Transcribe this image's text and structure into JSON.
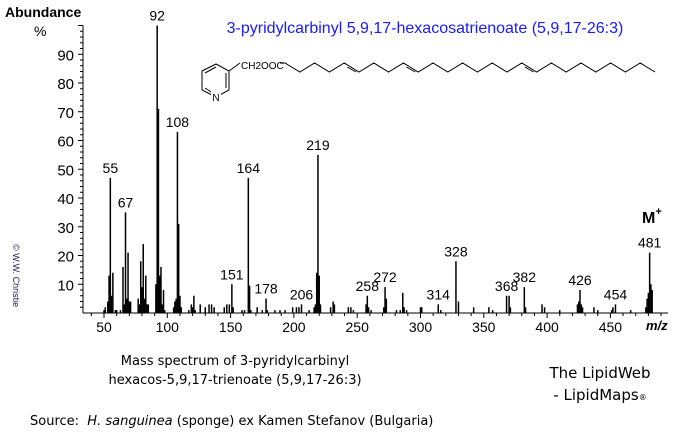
{
  "chart_data": {
    "type": "bar",
    "title": "3-pyridylcarbinyl 5,9,17-hexacosatrienoate  (5,9,17-26:3)",
    "ylabel": "Abundance",
    "ylabel_unit": "%",
    "xlabel": "m/z",
    "xlim": [
      37,
      490
    ],
    "ylim": [
      0,
      100
    ],
    "xticks": [
      50,
      100,
      150,
      200,
      250,
      300,
      350,
      400,
      450
    ],
    "yticks": [
      10,
      20,
      30,
      40,
      50,
      60,
      70,
      80,
      90
    ],
    "grid": false,
    "title_color": "#1a1aff",
    "molecular_ion_label": "M",
    "molecular_ion_sup": "+",
    "peaks": [
      {
        "mz": 50,
        "rel": 1
      },
      {
        "mz": 51,
        "rel": 2
      },
      {
        "mz": 53,
        "rel": 4
      },
      {
        "mz": 54,
        "rel": 13
      },
      {
        "mz": 55,
        "rel": 47,
        "label": "55"
      },
      {
        "mz": 56,
        "rel": 6
      },
      {
        "mz": 57,
        "rel": 14
      },
      {
        "mz": 59,
        "rel": 1
      },
      {
        "mz": 60,
        "rel": 1
      },
      {
        "mz": 63,
        "rel": 1
      },
      {
        "mz": 65,
        "rel": 16
      },
      {
        "mz": 66,
        "rel": 3
      },
      {
        "mz": 67,
        "rel": 35,
        "label": "67"
      },
      {
        "mz": 68,
        "rel": 5
      },
      {
        "mz": 69,
        "rel": 21
      },
      {
        "mz": 70,
        "rel": 4
      },
      {
        "mz": 71,
        "rel": 4
      },
      {
        "mz": 77,
        "rel": 5
      },
      {
        "mz": 78,
        "rel": 3
      },
      {
        "mz": 79,
        "rel": 18
      },
      {
        "mz": 80,
        "rel": 9
      },
      {
        "mz": 81,
        "rel": 24
      },
      {
        "mz": 82,
        "rel": 5
      },
      {
        "mz": 83,
        "rel": 13
      },
      {
        "mz": 84,
        "rel": 3
      },
      {
        "mz": 85,
        "rel": 3
      },
      {
        "mz": 91,
        "rel": 10
      },
      {
        "mz": 92,
        "rel": 100,
        "label": "92"
      },
      {
        "mz": 93,
        "rel": 71
      },
      {
        "mz": 94,
        "rel": 13
      },
      {
        "mz": 95,
        "rel": 16
      },
      {
        "mz": 96,
        "rel": 3
      },
      {
        "mz": 97,
        "rel": 8
      },
      {
        "mz": 98,
        "rel": 1
      },
      {
        "mz": 105,
        "rel": 2
      },
      {
        "mz": 106,
        "rel": 4
      },
      {
        "mz": 107,
        "rel": 5
      },
      {
        "mz": 108,
        "rel": 63,
        "label": "108"
      },
      {
        "mz": 109,
        "rel": 31
      },
      {
        "mz": 110,
        "rel": 6
      },
      {
        "mz": 111,
        "rel": 2
      },
      {
        "mz": 117,
        "rel": 1
      },
      {
        "mz": 119,
        "rel": 3
      },
      {
        "mz": 120,
        "rel": 2
      },
      {
        "mz": 121,
        "rel": 6
      },
      {
        "mz": 122,
        "rel": 1
      },
      {
        "mz": 126,
        "rel": 3
      },
      {
        "mz": 130,
        "rel": 2
      },
      {
        "mz": 133,
        "rel": 3
      },
      {
        "mz": 135,
        "rel": 3
      },
      {
        "mz": 137,
        "rel": 2
      },
      {
        "mz": 145,
        "rel": 2
      },
      {
        "mz": 147,
        "rel": 3
      },
      {
        "mz": 149,
        "rel": 3
      },
      {
        "mz": 151,
        "rel": 10,
        "label": "151"
      },
      {
        "mz": 152,
        "rel": 2
      },
      {
        "mz": 159,
        "rel": 1
      },
      {
        "mz": 161,
        "rel": 1
      },
      {
        "mz": 164,
        "rel": 47,
        "label": "164"
      },
      {
        "mz": 165,
        "rel": 9.5
      },
      {
        "mz": 166,
        "rel": 1
      },
      {
        "mz": 171,
        "rel": 2
      },
      {
        "mz": 175,
        "rel": 1
      },
      {
        "mz": 178,
        "rel": 5,
        "label": "178"
      },
      {
        "mz": 179,
        "rel": 1
      },
      {
        "mz": 185,
        "rel": 1
      },
      {
        "mz": 189,
        "rel": 1
      },
      {
        "mz": 193,
        "rel": 1
      },
      {
        "mz": 199,
        "rel": 2
      },
      {
        "mz": 202,
        "rel": 2
      },
      {
        "mz": 204,
        "rel": 2
      },
      {
        "mz": 206,
        "rel": 3,
        "label": "206"
      },
      {
        "mz": 212,
        "rel": 1
      },
      {
        "mz": 216,
        "rel": 2
      },
      {
        "mz": 217,
        "rel": 3
      },
      {
        "mz": 218,
        "rel": 14
      },
      {
        "mz": 219,
        "rel": 55,
        "label": "219"
      },
      {
        "mz": 220,
        "rel": 13
      },
      {
        "mz": 221,
        "rel": 3
      },
      {
        "mz": 229,
        "rel": 2
      },
      {
        "mz": 231,
        "rel": 4
      },
      {
        "mz": 232,
        "rel": 3
      },
      {
        "mz": 243,
        "rel": 2
      },
      {
        "mz": 245,
        "rel": 2
      },
      {
        "mz": 247,
        "rel": 1
      },
      {
        "mz": 257,
        "rel": 3
      },
      {
        "mz": 258,
        "rel": 6,
        "label": "258"
      },
      {
        "mz": 259,
        "rel": 2
      },
      {
        "mz": 261,
        "rel": 1
      },
      {
        "mz": 271,
        "rel": 2
      },
      {
        "mz": 272,
        "rel": 9,
        "label": "272"
      },
      {
        "mz": 273,
        "rel": 5
      },
      {
        "mz": 281,
        "rel": 1
      },
      {
        "mz": 284,
        "rel": 1
      },
      {
        "mz": 286,
        "rel": 7
      },
      {
        "mz": 287,
        "rel": 2
      },
      {
        "mz": 289,
        "rel": 1
      },
      {
        "mz": 300,
        "rel": 2
      },
      {
        "mz": 301,
        "rel": 2
      },
      {
        "mz": 314,
        "rel": 3,
        "label": "314"
      },
      {
        "mz": 316,
        "rel": 1
      },
      {
        "mz": 328,
        "rel": 18,
        "label": "328"
      },
      {
        "mz": 330,
        "rel": 4
      },
      {
        "mz": 342,
        "rel": 2
      },
      {
        "mz": 354,
        "rel": 2
      },
      {
        "mz": 357,
        "rel": 1
      },
      {
        "mz": 368,
        "rel": 6,
        "label": "368"
      },
      {
        "mz": 370,
        "rel": 6
      },
      {
        "mz": 371,
        "rel": 2
      },
      {
        "mz": 382,
        "rel": 9,
        "label": "382"
      },
      {
        "mz": 383,
        "rel": 2
      },
      {
        "mz": 396,
        "rel": 3
      },
      {
        "mz": 398,
        "rel": 2
      },
      {
        "mz": 410,
        "rel": 1
      },
      {
        "mz": 424,
        "rel": 3
      },
      {
        "mz": 425,
        "rel": 4
      },
      {
        "mz": 426,
        "rel": 8,
        "label": "426"
      },
      {
        "mz": 427,
        "rel": 3
      },
      {
        "mz": 428,
        "rel": 2
      },
      {
        "mz": 437,
        "rel": 2
      },
      {
        "mz": 440,
        "rel": 1
      },
      {
        "mz": 451,
        "rel": 1
      },
      {
        "mz": 452,
        "rel": 2
      },
      {
        "mz": 454,
        "rel": 3,
        "label": "454"
      },
      {
        "mz": 466,
        "rel": 1
      },
      {
        "mz": 478,
        "rel": 2
      },
      {
        "mz": 479,
        "rel": 5
      },
      {
        "mz": 480,
        "rel": 7
      },
      {
        "mz": 481,
        "rel": 21,
        "label": "481"
      },
      {
        "mz": 482,
        "rel": 10
      },
      {
        "mz": 483,
        "rel": 8
      }
    ]
  },
  "structure": {
    "substituent_label": "CH2OOC",
    "ring_atom": "N"
  },
  "copyright": "© W.W. Christie",
  "caption": {
    "line1": "Mass spectrum of 3-pyridylcarbinyl",
    "line2": "hexacos-5,9,17-trienoate (5,9,17-26:3)"
  },
  "branding": {
    "line1": "The LipidWeb",
    "line2": "- LipidMaps",
    "mark": "®"
  },
  "source": {
    "prefix": "Source:  ",
    "species": "H. sanguinea",
    "suffix": " (sponge) ex Kamen Stefanov (Bulgaria)"
  }
}
